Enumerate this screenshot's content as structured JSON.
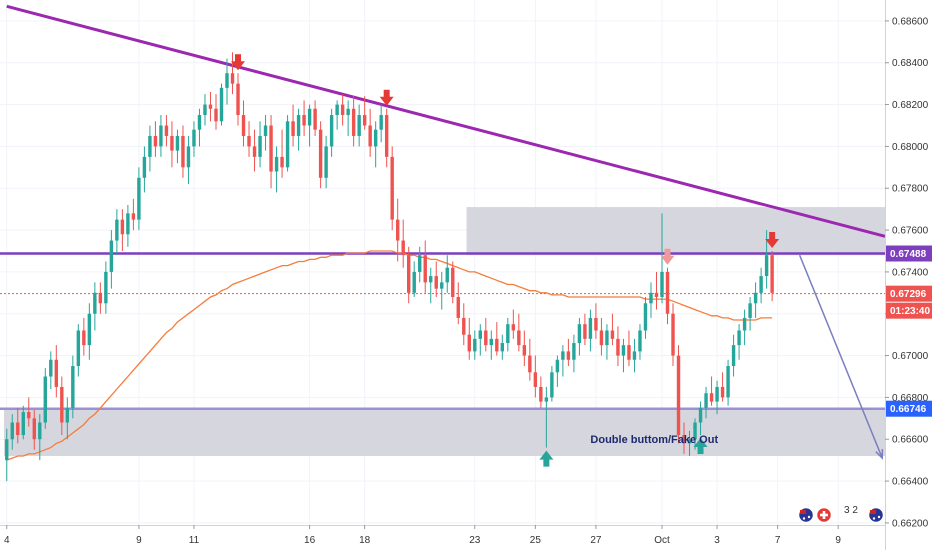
{
  "chart_data": {
    "type": "candlestick",
    "symbol_note": "",
    "y_axis": {
      "range": [
        0.6619,
        0.687
      ],
      "ticks": [
        0.662,
        0.664,
        0.666,
        0.668,
        0.67,
        0.672,
        0.674,
        0.676,
        0.678,
        0.68,
        0.682,
        0.684,
        0.686
      ],
      "tick_labels": [
        "0.66200",
        "0.66400",
        "0.66600",
        "0.66800",
        "0.67000",
        "0.67200",
        "0.67400",
        "0.67600",
        "0.67800",
        "0.68000",
        "0.68200",
        "0.68400",
        "0.68600"
      ]
    },
    "x_axis": {
      "ticks": [
        {
          "index": 0,
          "label": "4"
        },
        {
          "index": 24,
          "label": "9"
        },
        {
          "index": 34,
          "label": "11"
        },
        {
          "index": 55,
          "label": "16"
        },
        {
          "index": 65,
          "label": "18"
        },
        {
          "index": 85,
          "label": "23"
        },
        {
          "index": 96,
          "label": "25"
        },
        {
          "index": 107,
          "label": "27"
        },
        {
          "index": 119,
          "label": "Oct"
        },
        {
          "index": 129,
          "label": "3"
        },
        {
          "index": 140,
          "label": "7"
        },
        {
          "index": 151,
          "label": "9"
        }
      ]
    },
    "candles": [
      [
        0.665,
        0.6665,
        0.664,
        0.666
      ],
      [
        0.666,
        0.6672,
        0.6655,
        0.6668
      ],
      [
        0.6668,
        0.6675,
        0.6658,
        0.6662
      ],
      [
        0.6662,
        0.6676,
        0.666,
        0.6673
      ],
      [
        0.6673,
        0.668,
        0.6666,
        0.667
      ],
      [
        0.667,
        0.6674,
        0.6655,
        0.666
      ],
      [
        0.666,
        0.6672,
        0.665,
        0.6668
      ],
      [
        0.6668,
        0.6694,
        0.6665,
        0.669
      ],
      [
        0.669,
        0.6702,
        0.6684,
        0.6698
      ],
      [
        0.6698,
        0.6705,
        0.668,
        0.6685
      ],
      [
        0.6685,
        0.669,
        0.6662,
        0.6668
      ],
      [
        0.6668,
        0.668,
        0.666,
        0.6675
      ],
      [
        0.6675,
        0.67,
        0.667,
        0.6695
      ],
      [
        0.6695,
        0.6715,
        0.669,
        0.6712
      ],
      [
        0.6712,
        0.6718,
        0.67,
        0.6705
      ],
      [
        0.6705,
        0.6725,
        0.6698,
        0.672
      ],
      [
        0.672,
        0.6735,
        0.6712,
        0.673
      ],
      [
        0.673,
        0.6735,
        0.672,
        0.6725
      ],
      [
        0.6725,
        0.6745,
        0.672,
        0.674
      ],
      [
        0.674,
        0.676,
        0.6732,
        0.6755
      ],
      [
        0.6755,
        0.677,
        0.6748,
        0.6765
      ],
      [
        0.6765,
        0.677,
        0.675,
        0.6758
      ],
      [
        0.6758,
        0.6772,
        0.6752,
        0.6768
      ],
      [
        0.6768,
        0.6775,
        0.676,
        0.6765
      ],
      [
        0.6765,
        0.679,
        0.676,
        0.6785
      ],
      [
        0.6785,
        0.68,
        0.6778,
        0.6795
      ],
      [
        0.6795,
        0.681,
        0.6788,
        0.6805
      ],
      [
        0.6805,
        0.6812,
        0.6795,
        0.68
      ],
      [
        0.68,
        0.6815,
        0.6795,
        0.681
      ],
      [
        0.681,
        0.6815,
        0.68,
        0.6805
      ],
      [
        0.6805,
        0.6812,
        0.679,
        0.6798
      ],
      [
        0.6798,
        0.6808,
        0.6792,
        0.6805
      ],
      [
        0.6805,
        0.681,
        0.6785,
        0.679
      ],
      [
        0.679,
        0.6805,
        0.6782,
        0.68
      ],
      [
        0.68,
        0.6812,
        0.6795,
        0.6808
      ],
      [
        0.6808,
        0.6818,
        0.68,
        0.6815
      ],
      [
        0.6815,
        0.6825,
        0.681,
        0.682
      ],
      [
        0.682,
        0.6826,
        0.6812,
        0.6818
      ],
      [
        0.6818,
        0.6825,
        0.6808,
        0.6812
      ],
      [
        0.6812,
        0.683,
        0.681,
        0.6828
      ],
      [
        0.6828,
        0.6842,
        0.682,
        0.6835
      ],
      [
        0.6835,
        0.6845,
        0.6825,
        0.683
      ],
      [
        0.683,
        0.6835,
        0.681,
        0.6815
      ],
      [
        0.6815,
        0.6822,
        0.68,
        0.6805
      ],
      [
        0.6805,
        0.6812,
        0.6795,
        0.68
      ],
      [
        0.68,
        0.6808,
        0.6788,
        0.6795
      ],
      [
        0.6795,
        0.6812,
        0.679,
        0.6805
      ],
      [
        0.6805,
        0.6815,
        0.6798,
        0.681
      ],
      [
        0.681,
        0.6815,
        0.678,
        0.6788
      ],
      [
        0.6788,
        0.68,
        0.6778,
        0.6795
      ],
      [
        0.6795,
        0.6808,
        0.6785,
        0.679
      ],
      [
        0.679,
        0.6815,
        0.6788,
        0.6812
      ],
      [
        0.6812,
        0.682,
        0.68,
        0.6805
      ],
      [
        0.6805,
        0.6818,
        0.6798,
        0.6815
      ],
      [
        0.6815,
        0.6822,
        0.6805,
        0.681
      ],
      [
        0.681,
        0.682,
        0.68,
        0.6818
      ],
      [
        0.6818,
        0.6822,
        0.6805,
        0.6808
      ],
      [
        0.6808,
        0.6812,
        0.678,
        0.6785
      ],
      [
        0.6785,
        0.6805,
        0.678,
        0.68
      ],
      [
        0.68,
        0.6818,
        0.6795,
        0.6815
      ],
      [
        0.6815,
        0.6822,
        0.6808,
        0.682
      ],
      [
        0.682,
        0.6825,
        0.681,
        0.6815
      ],
      [
        0.6815,
        0.6822,
        0.6805,
        0.6818
      ],
      [
        0.6818,
        0.6824,
        0.68,
        0.6805
      ],
      [
        0.6805,
        0.682,
        0.68,
        0.6815
      ],
      [
        0.6815,
        0.6824,
        0.6808,
        0.681
      ],
      [
        0.681,
        0.6818,
        0.6795,
        0.68
      ],
      [
        0.68,
        0.6812,
        0.679,
        0.6808
      ],
      [
        0.6808,
        0.682,
        0.6802,
        0.6815
      ],
      [
        0.6815,
        0.6818,
        0.679,
        0.6795
      ],
      [
        0.6795,
        0.68,
        0.676,
        0.6765
      ],
      [
        0.6765,
        0.6775,
        0.6745,
        0.6755
      ],
      [
        0.6755,
        0.6765,
        0.6742,
        0.6748
      ],
      [
        0.6748,
        0.6752,
        0.6725,
        0.673
      ],
      [
        0.673,
        0.6745,
        0.6728,
        0.674
      ],
      [
        0.674,
        0.6752,
        0.6735,
        0.6748
      ],
      [
        0.6748,
        0.6755,
        0.673,
        0.6735
      ],
      [
        0.6735,
        0.6742,
        0.6725,
        0.6738
      ],
      [
        0.6738,
        0.6745,
        0.6728,
        0.6732
      ],
      [
        0.6732,
        0.674,
        0.6722,
        0.6735
      ],
      [
        0.6735,
        0.6748,
        0.673,
        0.6742
      ],
      [
        0.6742,
        0.6745,
        0.6725,
        0.6728
      ],
      [
        0.6728,
        0.6735,
        0.6715,
        0.6718
      ],
      [
        0.6718,
        0.6725,
        0.6705,
        0.671
      ],
      [
        0.671,
        0.6718,
        0.6698,
        0.6702
      ],
      [
        0.6702,
        0.6712,
        0.6698,
        0.6708
      ],
      [
        0.6708,
        0.6715,
        0.67,
        0.6712
      ],
      [
        0.6712,
        0.6718,
        0.6702,
        0.6705
      ],
      [
        0.6705,
        0.6712,
        0.6698,
        0.6708
      ],
      [
        0.6708,
        0.6716,
        0.67,
        0.6702
      ],
      [
        0.6702,
        0.671,
        0.6698,
        0.6706
      ],
      [
        0.6706,
        0.6718,
        0.6702,
        0.6715
      ],
      [
        0.6715,
        0.6722,
        0.6708,
        0.6712
      ],
      [
        0.6712,
        0.672,
        0.6702,
        0.6705
      ],
      [
        0.6705,
        0.6712,
        0.6695,
        0.67
      ],
      [
        0.67,
        0.6708,
        0.6688,
        0.6692
      ],
      [
        0.6692,
        0.67,
        0.668,
        0.6685
      ],
      [
        0.6685,
        0.669,
        0.6675,
        0.6678
      ],
      [
        0.6678,
        0.6685,
        0.6656,
        0.668
      ],
      [
        0.668,
        0.6695,
        0.6678,
        0.6692
      ],
      [
        0.6692,
        0.67,
        0.6685,
        0.6698
      ],
      [
        0.6698,
        0.6705,
        0.669,
        0.6702
      ],
      [
        0.6702,
        0.6708,
        0.6695,
        0.6698
      ],
      [
        0.6698,
        0.671,
        0.6692,
        0.6706
      ],
      [
        0.6706,
        0.6718,
        0.67,
        0.6715
      ],
      [
        0.6715,
        0.672,
        0.6705,
        0.6708
      ],
      [
        0.6708,
        0.6722,
        0.6702,
        0.6718
      ],
      [
        0.6718,
        0.6725,
        0.6708,
        0.6712
      ],
      [
        0.6712,
        0.6718,
        0.67,
        0.6705
      ],
      [
        0.6705,
        0.6715,
        0.6698,
        0.6712
      ],
      [
        0.6712,
        0.672,
        0.6705,
        0.6708
      ],
      [
        0.6708,
        0.6714,
        0.6695,
        0.67
      ],
      [
        0.67,
        0.6708,
        0.6692,
        0.6705
      ],
      [
        0.6705,
        0.6712,
        0.6695,
        0.6698
      ],
      [
        0.6698,
        0.6708,
        0.6692,
        0.6702
      ],
      [
        0.6702,
        0.6715,
        0.6698,
        0.6712
      ],
      [
        0.6712,
        0.6728,
        0.6708,
        0.6725
      ],
      [
        0.6725,
        0.6735,
        0.6718,
        0.673
      ],
      [
        0.673,
        0.674,
        0.6722,
        0.6728
      ],
      [
        0.6728,
        0.6768,
        0.6725,
        0.674
      ],
      [
        0.674,
        0.6742,
        0.6715,
        0.672
      ],
      [
        0.672,
        0.6725,
        0.6695,
        0.67
      ],
      [
        0.67,
        0.6705,
        0.6658,
        0.6662
      ],
      [
        0.6662,
        0.6668,
        0.6653,
        0.6658
      ],
      [
        0.6658,
        0.6664,
        0.6652,
        0.666
      ],
      [
        0.666,
        0.667,
        0.6655,
        0.6668
      ],
      [
        0.6668,
        0.6678,
        0.6662,
        0.6675
      ],
      [
        0.6675,
        0.6685,
        0.667,
        0.6682
      ],
      [
        0.6682,
        0.669,
        0.6676,
        0.6678
      ],
      [
        0.6678,
        0.6688,
        0.6672,
        0.6685
      ],
      [
        0.6685,
        0.6692,
        0.6678,
        0.668
      ],
      [
        0.668,
        0.6698,
        0.6676,
        0.6695
      ],
      [
        0.6695,
        0.671,
        0.669,
        0.6705
      ],
      [
        0.6705,
        0.6715,
        0.6698,
        0.6712
      ],
      [
        0.6712,
        0.6722,
        0.6705,
        0.6718
      ],
      [
        0.6718,
        0.6728,
        0.6712,
        0.6725
      ],
      [
        0.6725,
        0.6735,
        0.6718,
        0.673
      ],
      [
        0.673,
        0.6742,
        0.6725,
        0.6738
      ],
      [
        0.6738,
        0.676,
        0.6732,
        0.6748
      ],
      [
        0.6748,
        0.675,
        0.6726,
        0.673
      ]
    ],
    "moving_average": [
      0.665,
      0.6651,
      0.6652,
      0.6652,
      0.6653,
      0.6653,
      0.6654,
      0.6655,
      0.6656,
      0.6658,
      0.6659,
      0.6661,
      0.6663,
      0.6665,
      0.6667,
      0.667,
      0.6672,
      0.6675,
      0.6678,
      0.6681,
      0.6684,
      0.6687,
      0.669,
      0.6693,
      0.6696,
      0.6699,
      0.6702,
      0.6705,
      0.6708,
      0.6711,
      0.6713,
      0.6716,
      0.6718,
      0.672,
      0.6722,
      0.6724,
      0.6726,
      0.6728,
      0.6729,
      0.6731,
      0.6732,
      0.6734,
      0.6735,
      0.6736,
      0.6737,
      0.6738,
      0.6739,
      0.674,
      0.6741,
      0.6742,
      0.6743,
      0.6743,
      0.6744,
      0.6745,
      0.6745,
      0.6746,
      0.6746,
      0.6747,
      0.6747,
      0.6748,
      0.6748,
      0.6748,
      0.6749,
      0.6749,
      0.6749,
      0.6749,
      0.675,
      0.675,
      0.675,
      0.675,
      0.675,
      0.6749,
      0.6749,
      0.6748,
      0.6748,
      0.6747,
      0.6747,
      0.6746,
      0.6746,
      0.6745,
      0.6744,
      0.6743,
      0.6742,
      0.6741,
      0.674,
      0.674,
      0.6739,
      0.6738,
      0.6737,
      0.6736,
      0.6735,
      0.6734,
      0.6734,
      0.6733,
      0.6732,
      0.6731,
      0.6731,
      0.673,
      0.673,
      0.6729,
      0.6729,
      0.6729,
      0.6728,
      0.6728,
      0.6728,
      0.6728,
      0.6728,
      0.6728,
      0.6728,
      0.6728,
      0.6728,
      0.6728,
      0.6728,
      0.6728,
      0.6728,
      0.6728,
      0.6727,
      0.6727,
      0.6727,
      0.6727,
      0.6727,
      0.6726,
      0.6725,
      0.6724,
      0.6723,
      0.6722,
      0.6721,
      0.672,
      0.6719,
      0.6719,
      0.6718,
      0.6718,
      0.6717,
      0.6717,
      0.6717,
      0.6717,
      0.6717,
      0.6718,
      0.6718,
      0.6718
    ],
    "price_tags": [
      {
        "label": "0.67488",
        "value": 0.67488,
        "color": "#7e3fbf"
      },
      {
        "label": "0.67296",
        "value": 0.67296,
        "color": "#ef5350"
      },
      {
        "label": "01:23:40",
        "value": 0.67296,
        "color": "#ef5350",
        "offset_row": 1
      },
      {
        "label": "0.66746",
        "value": 0.66746,
        "color": "#2962ff"
      }
    ],
    "horizontal_lines": [
      {
        "value": 0.67488,
        "color": "#7e3fbf"
      },
      {
        "value": 0.66746,
        "color": "#9c8fd6"
      }
    ],
    "current_price_line": {
      "value": 0.67296,
      "color": "#ef5350"
    },
    "zones": [
      {
        "x_from": 0,
        "x_to": 160,
        "y_low": 0.6652,
        "y_high": 0.6675,
        "color": "#cfd0d8"
      },
      {
        "x_from": 84,
        "x_to": 160,
        "y_low": 0.6748,
        "y_high": 0.6771,
        "color": "#cfd0d8"
      }
    ],
    "trendline": {
      "x1": 0,
      "y1": 0.6867,
      "x2": 160,
      "y2": 0.6757,
      "color": "#9c27b0"
    },
    "projection_arrow": {
      "x1": 144,
      "y1": 0.6748,
      "x2": 159,
      "y2": 0.6651,
      "color": "#7a7fc0"
    },
    "markers": [
      {
        "index": 42,
        "position": "above",
        "direction": "down",
        "color": "#e53935"
      },
      {
        "index": 69,
        "position": "above",
        "direction": "down",
        "color": "#e53935"
      },
      {
        "index": 120,
        "position": "above",
        "direction": "down",
        "color": "#ef9a9a"
      },
      {
        "index": 139,
        "position": "above",
        "direction": "down",
        "color": "#e53935"
      },
      {
        "index": 98,
        "position": "below",
        "direction": "up",
        "color": "#26a69a"
      },
      {
        "index": 126,
        "position": "below",
        "direction": "up",
        "color": "#26a69a"
      }
    ],
    "annotation": {
      "text": "Double buttom/Fake Out",
      "value": 0.666,
      "index": 106
    },
    "colors": {
      "up": "#26a69a",
      "down": "#ef5350",
      "ma": "#f57c3a",
      "background": "#ffffff",
      "grid": "#f0f3fa"
    },
    "axis_icons": [
      "au-flag-icon",
      "swiss-flag-icon",
      "au-flag-icon"
    ],
    "axis_icon_badge": "3 2"
  }
}
